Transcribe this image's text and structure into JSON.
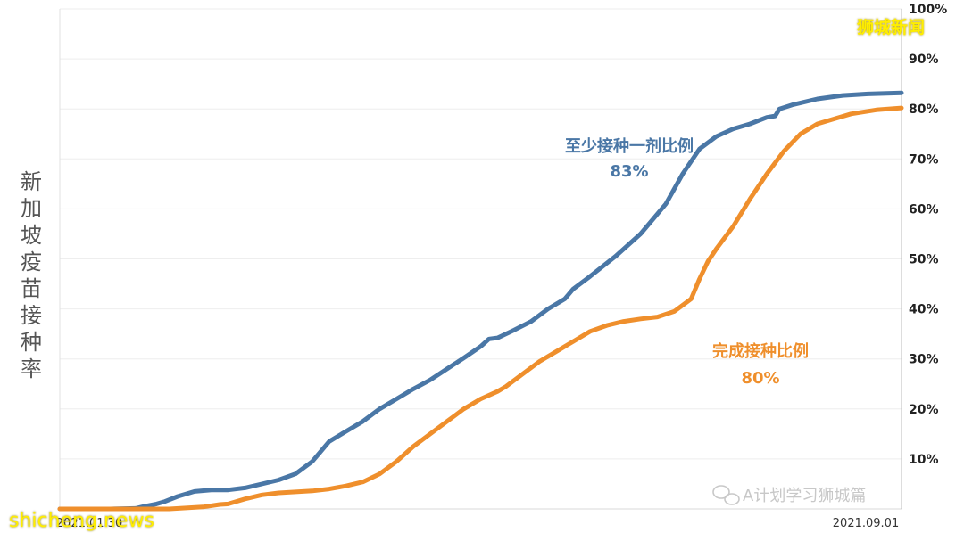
{
  "chart_data": {
    "type": "line",
    "ylabel": "新加坡疫苗接种率",
    "y_ticks": [
      "10%",
      "20%",
      "30%",
      "40%",
      "50%",
      "60%",
      "70%",
      "80%",
      "90%",
      "100%"
    ],
    "ylim": [
      0,
      100
    ],
    "x_labels": [
      "2021.01.30",
      "2021.09.01"
    ],
    "grid": true,
    "series": [
      {
        "name": "至少接种一剂比例",
        "value_label": "83%",
        "color": "#4a77a6",
        "points": [
          [
            0,
            0
          ],
          [
            0.03,
            0
          ],
          [
            0.06,
            0
          ],
          [
            0.09,
            0.1
          ],
          [
            0.1,
            0.5
          ],
          [
            0.115,
            1
          ],
          [
            0.125,
            1.5
          ],
          [
            0.14,
            2.5
          ],
          [
            0.16,
            3.5
          ],
          [
            0.18,
            3.8
          ],
          [
            0.2,
            3.8
          ],
          [
            0.22,
            4.2
          ],
          [
            0.24,
            5
          ],
          [
            0.26,
            5.8
          ],
          [
            0.28,
            7
          ],
          [
            0.3,
            9.5
          ],
          [
            0.32,
            13.5
          ],
          [
            0.34,
            15.5
          ],
          [
            0.36,
            17.5
          ],
          [
            0.38,
            20
          ],
          [
            0.4,
            22
          ],
          [
            0.42,
            24
          ],
          [
            0.44,
            25.8
          ],
          [
            0.46,
            28
          ],
          [
            0.48,
            30.2
          ],
          [
            0.5,
            32.5
          ],
          [
            0.51,
            34
          ],
          [
            0.52,
            34.2
          ],
          [
            0.54,
            35.8
          ],
          [
            0.56,
            37.5
          ],
          [
            0.58,
            40
          ],
          [
            0.6,
            42
          ],
          [
            0.61,
            44
          ],
          [
            0.63,
            46.5
          ],
          [
            0.66,
            50.5
          ],
          [
            0.69,
            55
          ],
          [
            0.72,
            61
          ],
          [
            0.74,
            67
          ],
          [
            0.76,
            72
          ],
          [
            0.78,
            74.5
          ],
          [
            0.8,
            76
          ],
          [
            0.82,
            77
          ],
          [
            0.84,
            78.3
          ],
          [
            0.85,
            78.6
          ],
          [
            0.855,
            80
          ],
          [
            0.87,
            80.8
          ],
          [
            0.9,
            82
          ],
          [
            0.93,
            82.7
          ],
          [
            0.96,
            83
          ],
          [
            1,
            83.2
          ]
        ]
      },
      {
        "name": "完成接种比例",
        "value_label": "80%",
        "color": "#ef8f2c",
        "points": [
          [
            0,
            0
          ],
          [
            0.05,
            0
          ],
          [
            0.1,
            0
          ],
          [
            0.13,
            0
          ],
          [
            0.15,
            0.2
          ],
          [
            0.17,
            0.4
          ],
          [
            0.19,
            0.9
          ],
          [
            0.2,
            1
          ],
          [
            0.22,
            2
          ],
          [
            0.24,
            2.8
          ],
          [
            0.26,
            3.2
          ],
          [
            0.28,
            3.4
          ],
          [
            0.3,
            3.6
          ],
          [
            0.32,
            4
          ],
          [
            0.34,
            4.6
          ],
          [
            0.36,
            5.4
          ],
          [
            0.38,
            7
          ],
          [
            0.4,
            9.5
          ],
          [
            0.42,
            12.5
          ],
          [
            0.44,
            15
          ],
          [
            0.46,
            17.5
          ],
          [
            0.48,
            20
          ],
          [
            0.5,
            22
          ],
          [
            0.52,
            23.5
          ],
          [
            0.53,
            24.5
          ],
          [
            0.55,
            27
          ],
          [
            0.57,
            29.5
          ],
          [
            0.59,
            31.5
          ],
          [
            0.61,
            33.5
          ],
          [
            0.63,
            35.5
          ],
          [
            0.65,
            36.7
          ],
          [
            0.67,
            37.5
          ],
          [
            0.69,
            38
          ],
          [
            0.71,
            38.4
          ],
          [
            0.73,
            39.5
          ],
          [
            0.75,
            42
          ],
          [
            0.76,
            46
          ],
          [
            0.77,
            49.5
          ],
          [
            0.78,
            52
          ],
          [
            0.8,
            56.5
          ],
          [
            0.82,
            62
          ],
          [
            0.84,
            67
          ],
          [
            0.86,
            71.5
          ],
          [
            0.88,
            75
          ],
          [
            0.9,
            77
          ],
          [
            0.92,
            78
          ],
          [
            0.94,
            79
          ],
          [
            0.97,
            79.8
          ],
          [
            1,
            80.2
          ]
        ]
      }
    ]
  },
  "watermarks": {
    "brand": "狮城新闻",
    "wechat": "A计划学习狮城篇",
    "site": "shicheng.news"
  }
}
